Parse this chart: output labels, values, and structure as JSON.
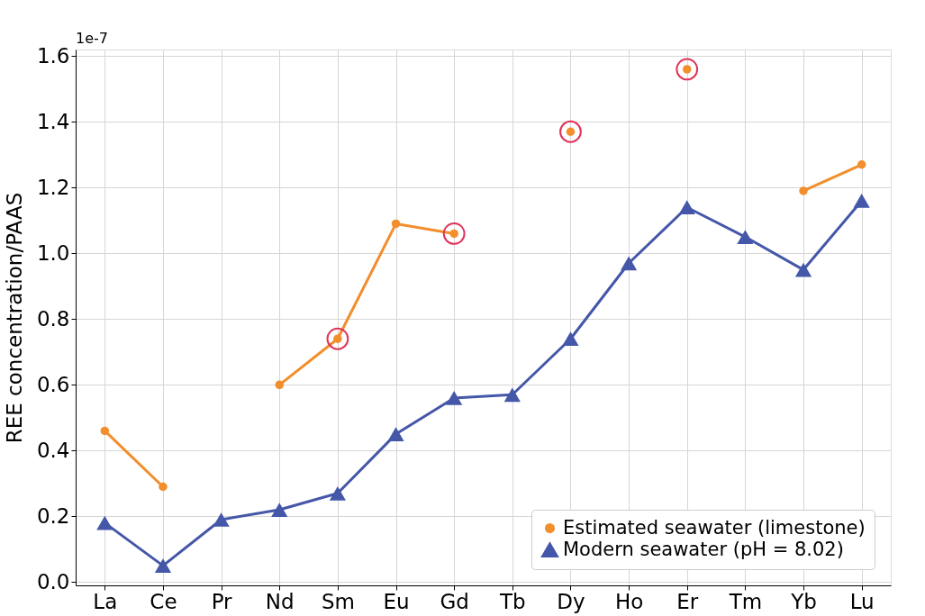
{
  "chart_data": {
    "type": "line",
    "ylabel": "REE concentration/PAAS",
    "categories": [
      "La",
      "Ce",
      "Pr",
      "Nd",
      "Sm",
      "Eu",
      "Gd",
      "Tb",
      "Dy",
      "Ho",
      "Er",
      "Tm",
      "Yb",
      "Lu"
    ],
    "series": [
      {
        "name": "Estimated seawater (limestone)",
        "color": "#f28e2b",
        "marker": "circle",
        "values": [
          0.46,
          0.29,
          null,
          0.6,
          0.74,
          1.09,
          1.06,
          null,
          1.37,
          null,
          1.56,
          null,
          1.19,
          1.27
        ]
      },
      {
        "name": "Modern seawater (pH = 8.02)",
        "color": "#4457a8",
        "marker": "triangle",
        "values": [
          0.18,
          0.05,
          0.19,
          0.22,
          0.27,
          0.45,
          0.56,
          0.57,
          0.74,
          0.97,
          1.14,
          1.05,
          0.95,
          1.16
        ]
      },
      {
        "type": "scatter",
        "color": "#e0345a",
        "marker": "circle",
        "values": [
          null,
          null,
          null,
          null,
          0.74,
          null,
          1.06,
          null,
          1.37,
          null,
          1.56,
          null,
          null,
          null
        ]
      }
    ],
    "ylim": [
      -0.01,
      1.62
    ],
    "yticks": [
      {
        "value": 0,
        "label": "0.0"
      },
      0.2,
      0.4,
      0.6,
      0.8,
      {
        "value": 1,
        "label": "1.0"
      },
      1.2,
      1.4,
      1.6
    ],
    "annotations": [
      "1e-7"
    ],
    "grid": true,
    "legend": "bottom right"
  }
}
